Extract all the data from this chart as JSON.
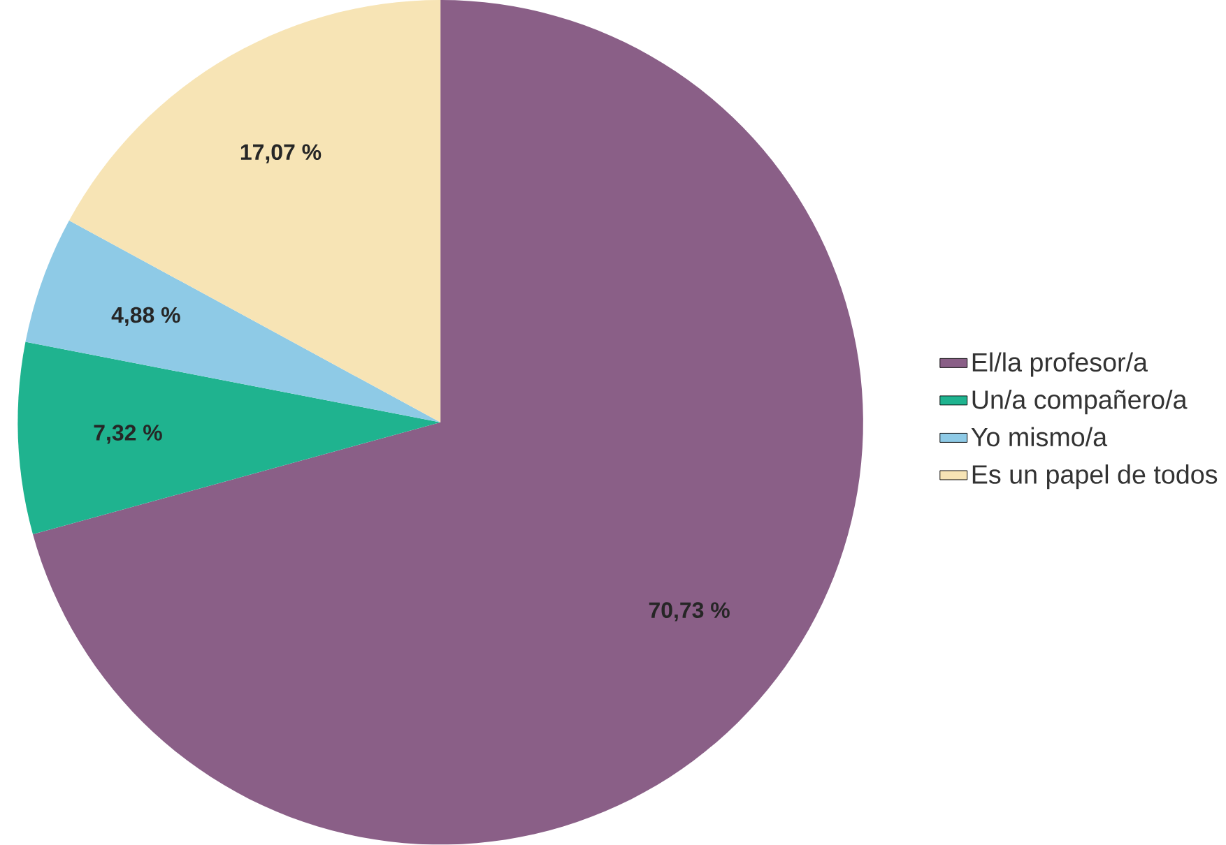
{
  "chart_data": {
    "type": "pie",
    "categories": [
      "El/la profesor/a",
      "Un/a compañero/a",
      "Yo mismo/a",
      "Es un papel de todos"
    ],
    "values": [
      70.73,
      7.32,
      4.88,
      17.07
    ],
    "colors": [
      "#8a5f87",
      "#1fb38f",
      "#8ecae6",
      "#f7e4b5"
    ],
    "value_labels": [
      "70,73 %",
      "7,32 %",
      "4,88 %",
      "17,07 %"
    ],
    "legend": "right"
  }
}
